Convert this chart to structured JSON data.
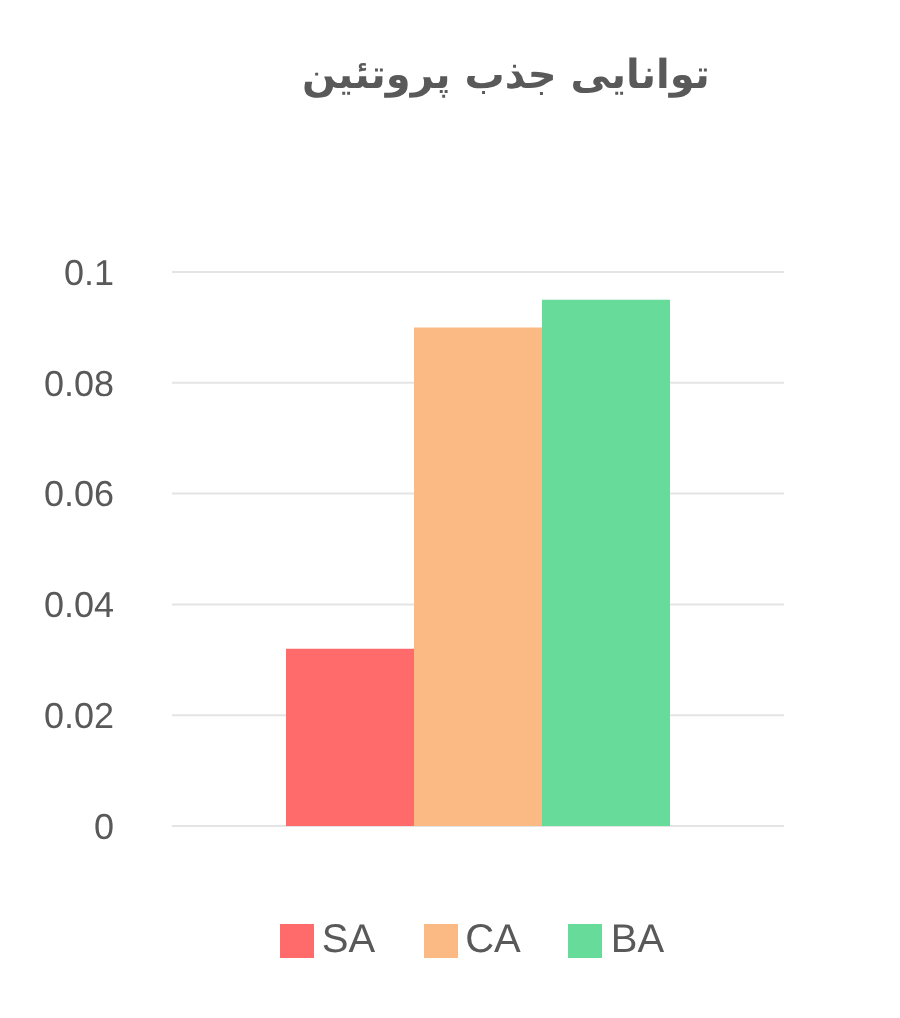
{
  "chart_data": {
    "type": "bar",
    "title": "توانایی جذب پروتئین",
    "categories": [
      null
    ],
    "series": [
      {
        "name": "SA",
        "color": "#ff6b6b",
        "values": [
          0.032
        ]
      },
      {
        "name": "CA",
        "color": "#fbb984",
        "values": [
          0.09
        ]
      },
      {
        "name": "BA",
        "color": "#66db9a",
        "values": [
          0.095
        ]
      }
    ],
    "ylim": [
      0,
      0.1
    ],
    "yticks": [
      0,
      0.02,
      0.04,
      0.06,
      0.08,
      0.1
    ],
    "grid": "y",
    "legend": "bottom",
    "tick_labels": "y"
  }
}
